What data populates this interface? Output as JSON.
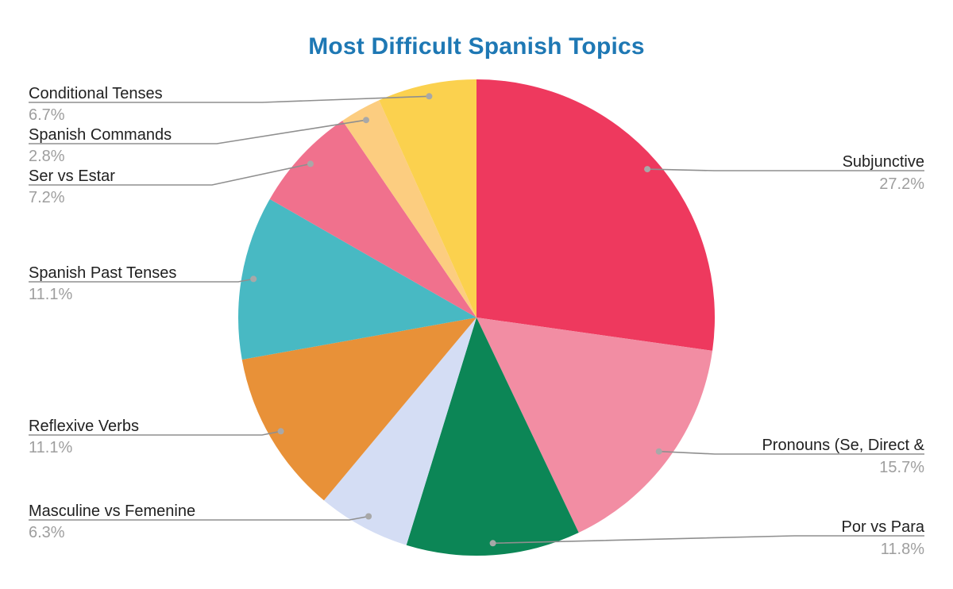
{
  "chart_data": {
    "type": "pie",
    "title": "Most Difficult Spanish Topics",
    "title_color": "#1e78b4",
    "direction": "clockwise",
    "start_angle_deg": 0,
    "legend_position": "none (outside labels with gray leader lines)",
    "background": "#ffffff",
    "slices": [
      {
        "label": "Subjunctive",
        "value": 27.2,
        "pct_label": "27.2%",
        "color": "#ee395e"
      },
      {
        "label": "Pronouns (Se, Direct &",
        "value": 15.7,
        "pct_label": "15.7%",
        "color": "#f28da3"
      },
      {
        "label": "Por vs Para",
        "value": 11.8,
        "pct_label": "11.8%",
        "color": "#0c8656"
      },
      {
        "label": "Masculine vs Femenine",
        "value": 6.3,
        "pct_label": "6.3%",
        "color": "#d4ddf4"
      },
      {
        "label": "Reflexive Verbs",
        "value": 11.1,
        "pct_label": "11.1%",
        "color": "#e89138"
      },
      {
        "label": "Spanish Past Tenses",
        "value": 11.1,
        "pct_label": "11.1%",
        "color": "#48b9c3"
      },
      {
        "label": "Ser vs Estar",
        "value": 7.2,
        "pct_label": "7.2%",
        "color": "#f0718d"
      },
      {
        "label": "Spanish Commands",
        "value": 2.8,
        "pct_label": "2.8%",
        "color": "#fccd80"
      },
      {
        "label": "Conditional Tenses",
        "value": 6.7,
        "pct_label": "6.7%",
        "color": "#fbd14e"
      }
    ],
    "text_colors": {
      "label": "#212121",
      "percent": "#9e9e9e",
      "leader_line": "#8f8f8f"
    }
  }
}
